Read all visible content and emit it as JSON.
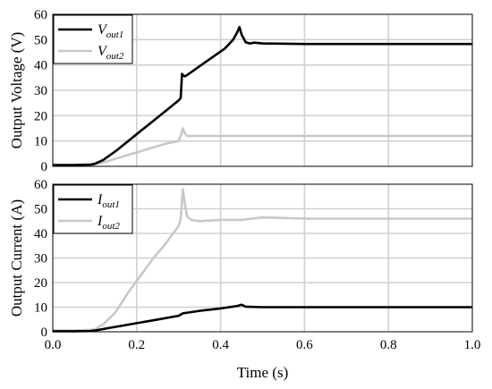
{
  "chart_data": [
    {
      "type": "line",
      "ylabel": "Output Voltage (V)",
      "xlim": [
        0,
        1.0
      ],
      "ylim": [
        0,
        60
      ],
      "yticks": [
        "0",
        "10",
        "20",
        "30",
        "40",
        "50",
        "60"
      ],
      "grid": true,
      "legend_position": "top-left",
      "series": [
        {
          "name": "V_out1",
          "label_main": "V",
          "label_sub": "out1",
          "color": "#000000",
          "x": [
            0,
            0.05,
            0.09,
            0.1,
            0.12,
            0.15,
            0.18,
            0.21,
            0.24,
            0.27,
            0.3,
            0.305,
            0.308,
            0.31,
            0.315,
            0.32,
            0.35,
            0.38,
            0.41,
            0.43,
            0.44,
            0.445,
            0.45,
            0.46,
            0.47,
            0.48,
            0.5,
            0.6,
            0.7,
            0.8,
            0.9,
            1.0
          ],
          "y": [
            0.5,
            0.5,
            0.7,
            1,
            2.5,
            6,
            10,
            14,
            18,
            22,
            26,
            27,
            36.5,
            36,
            35.5,
            36,
            39.5,
            43,
            46.5,
            50,
            53,
            55,
            52,
            49,
            48.5,
            48.8,
            48.5,
            48.3,
            48.3,
            48.3,
            48.3,
            48.3
          ]
        },
        {
          "name": "V_out2",
          "label_main": "V",
          "label_sub": "out2",
          "color": "#c8c8c8",
          "x": [
            0,
            0.05,
            0.09,
            0.1,
            0.12,
            0.15,
            0.18,
            0.21,
            0.24,
            0.27,
            0.3,
            0.305,
            0.31,
            0.315,
            0.32,
            0.33,
            0.35,
            0.4,
            0.45,
            0.5,
            0.6,
            0.7,
            0.8,
            0.9,
            1.0
          ],
          "y": [
            0.5,
            0.5,
            0.6,
            0.8,
            1.5,
            3,
            4.5,
            6,
            7.5,
            9,
            10,
            12,
            15,
            13,
            12,
            12,
            12,
            12,
            12,
            12,
            12,
            12,
            12,
            12,
            12
          ]
        }
      ]
    },
    {
      "type": "line",
      "xlabel": "Time (s)",
      "ylabel": "Output Current (A)",
      "xlim": [
        0,
        1.0
      ],
      "ylim": [
        0,
        60
      ],
      "xticks": [
        "0.0",
        "0.2",
        "0.4",
        "0.6",
        "0.8",
        "1.0"
      ],
      "yticks": [
        "0",
        "10",
        "20",
        "30",
        "40",
        "50",
        "60"
      ],
      "grid": true,
      "legend_position": "top-left",
      "series": [
        {
          "name": "I_out1",
          "label_main": "I",
          "label_sub": "out1",
          "color": "#000000",
          "x": [
            0,
            0.05,
            0.09,
            0.1,
            0.15,
            0.2,
            0.25,
            0.3,
            0.305,
            0.31,
            0.35,
            0.4,
            0.44,
            0.45,
            0.46,
            0.5,
            0.6,
            0.7,
            0.8,
            0.9,
            1.0
          ],
          "y": [
            0.2,
            0.2,
            0.3,
            0.5,
            2,
            3.5,
            5,
            6.5,
            7,
            7.5,
            8.5,
            9.5,
            10.5,
            11,
            10.2,
            10,
            10,
            10,
            10,
            10,
            10
          ]
        },
        {
          "name": "I_out2",
          "label_main": "I",
          "label_sub": "out2",
          "color": "#c8c8c8",
          "x": [
            0,
            0.05,
            0.09,
            0.1,
            0.12,
            0.15,
            0.18,
            0.21,
            0.24,
            0.27,
            0.3,
            0.305,
            0.31,
            0.315,
            0.32,
            0.33,
            0.35,
            0.4,
            0.45,
            0.5,
            0.6,
            0.7,
            0.8,
            0.9,
            1.0
          ],
          "y": [
            0.5,
            0.5,
            0.8,
            1,
            3,
            8,
            16,
            23,
            30,
            36,
            43,
            46,
            58,
            52,
            47,
            45.5,
            45,
            45.5,
            45.5,
            46.5,
            46,
            46,
            46,
            46,
            46
          ]
        }
      ]
    }
  ]
}
